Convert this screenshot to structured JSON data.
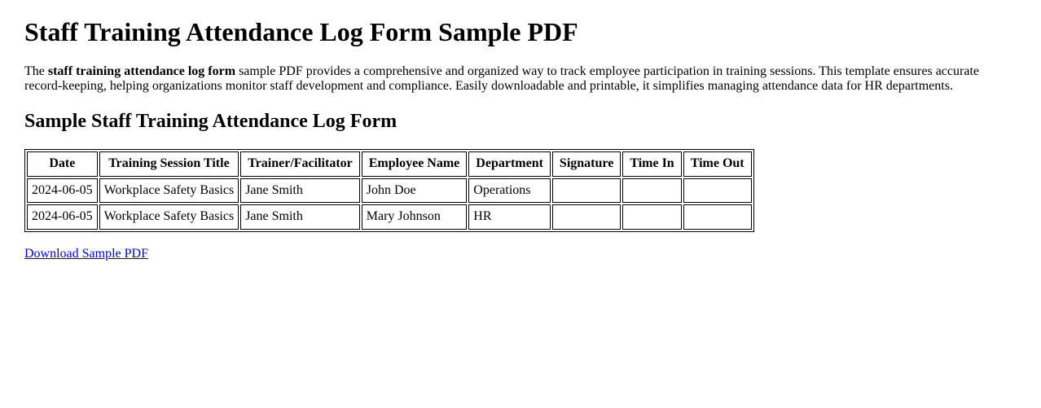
{
  "page": {
    "title": "Staff Training Attendance Log Form Sample PDF",
    "intro": {
      "prefix": "The ",
      "bold_phrase": "staff training attendance log form",
      "suffix": " sample PDF provides a comprehensive and organized way to track employee participation in training sessions. This template ensures accurate record-keeping, helping organizations monitor staff development and compliance. Easily downloadable and printable, it simplifies managing attendance data for HR departments."
    },
    "section_heading": "Sample Staff Training Attendance Log Form",
    "download_link_label": "Download Sample PDF",
    "link_color": "#0000EE",
    "text_color": "#000000",
    "table_border_color": "#000000"
  },
  "table": {
    "headers": [
      "Date",
      "Training Session Title",
      "Trainer/Facilitator",
      "Employee Name",
      "Department",
      "Signature",
      "Time In",
      "Time Out"
    ],
    "rows": [
      [
        "2024-06-05",
        "Workplace Safety Basics",
        "Jane Smith",
        "John Doe",
        "Operations",
        "",
        "",
        ""
      ],
      [
        "2024-06-05",
        "Workplace Safety Basics",
        "Jane Smith",
        "Mary Johnson",
        "HR",
        "",
        "",
        ""
      ]
    ]
  }
}
